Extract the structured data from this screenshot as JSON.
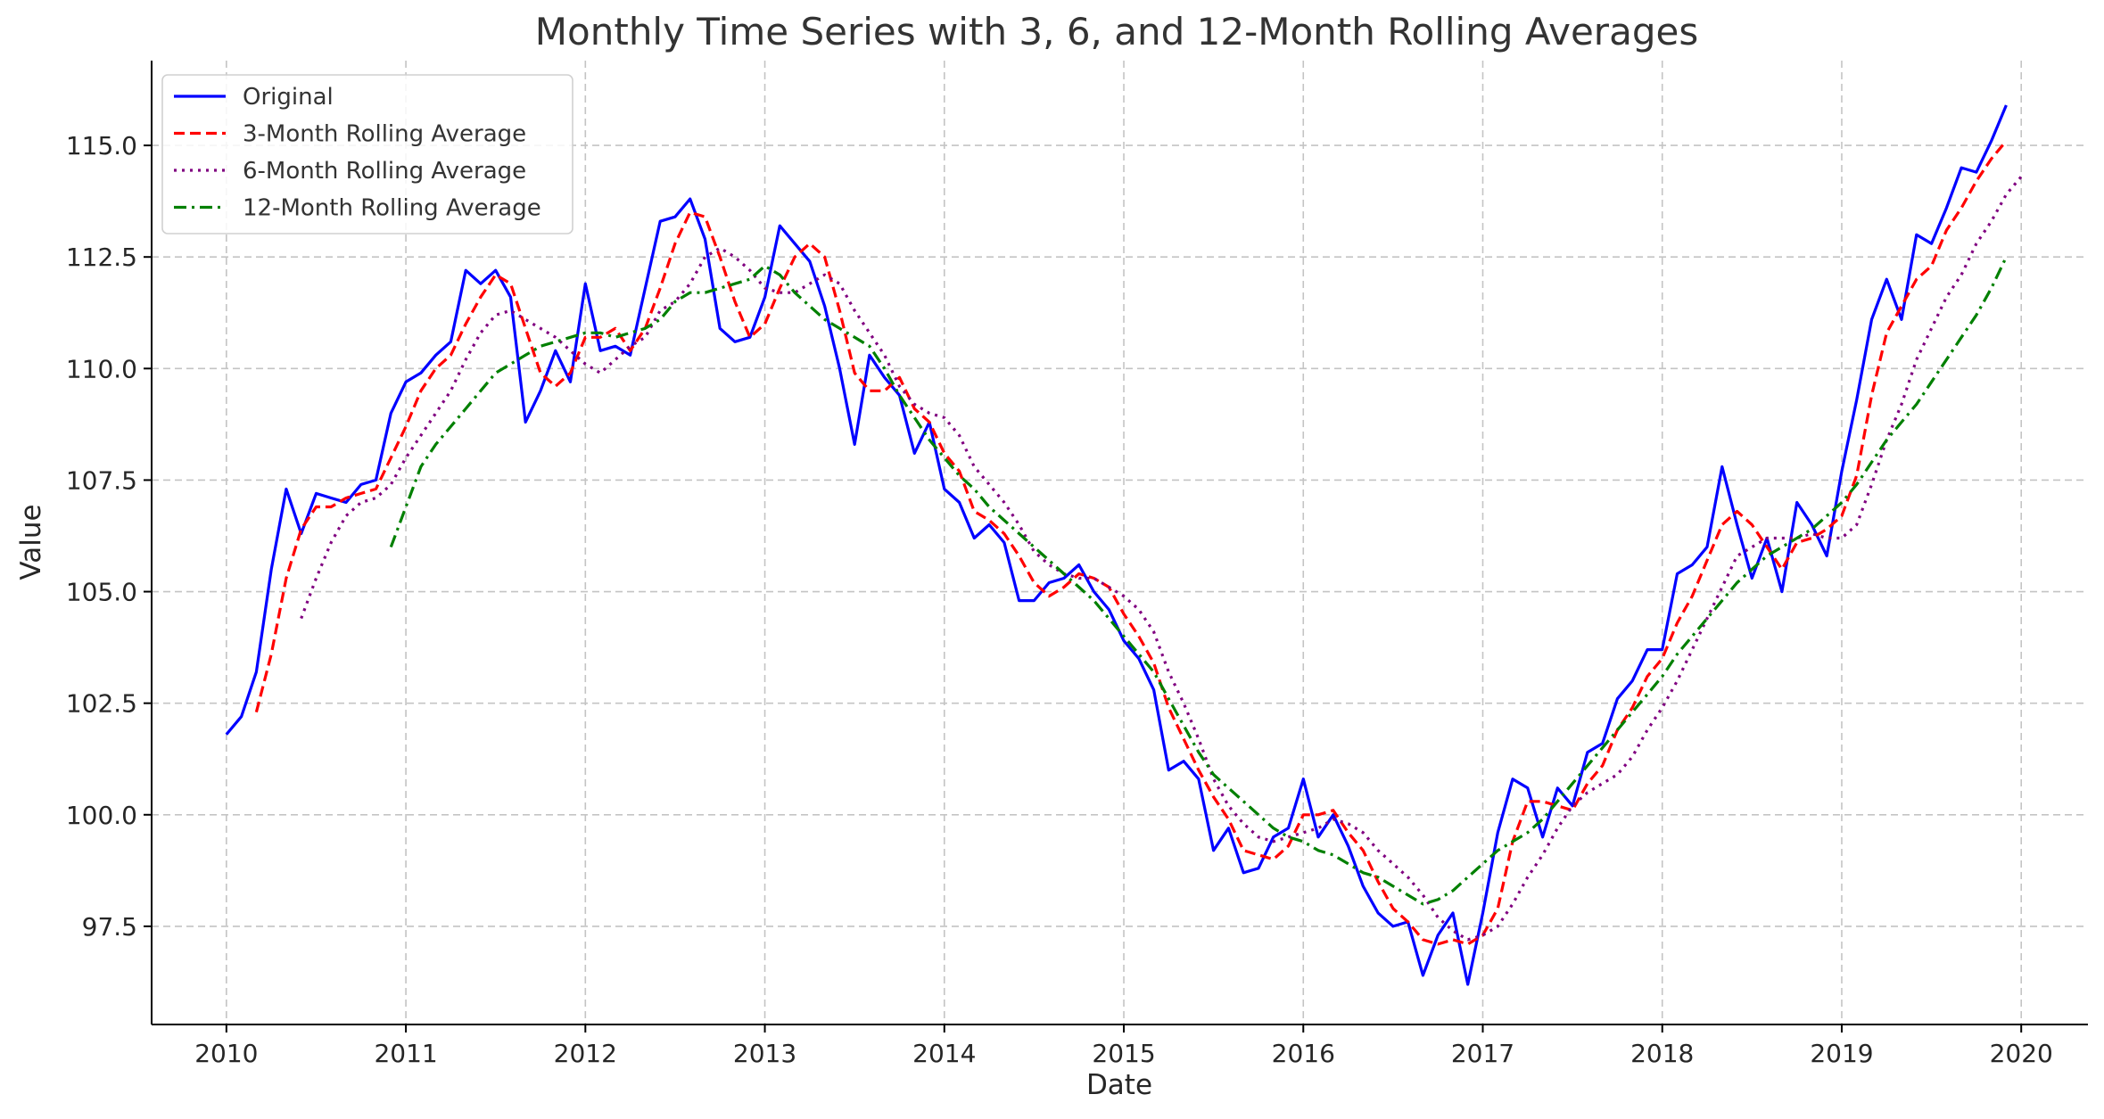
{
  "chart_data": {
    "type": "line",
    "title": "Monthly Time Series with 3, 6, and 12-Month Rolling Averages",
    "xlabel": "Date",
    "ylabel": "Value",
    "xlim": [
      "2009-08-01",
      "2020-05-15"
    ],
    "ylim": [
      95.3,
      116.9
    ],
    "x_ticks": [
      "2010",
      "2011",
      "2012",
      "2013",
      "2014",
      "2015",
      "2016",
      "2017",
      "2018",
      "2019",
      "2020"
    ],
    "y_ticks": [
      97.5,
      100.0,
      102.5,
      105.0,
      107.5,
      110.0,
      112.5,
      115.0
    ],
    "y_tick_labels": [
      "97.5",
      "100.0",
      "102.5",
      "105.0",
      "107.5",
      "110.0",
      "112.5",
      "115.0"
    ],
    "grid": true,
    "legend_position": "top-left",
    "start_month": "2010-01",
    "series": [
      {
        "name": "Original",
        "color": "#0000ff",
        "dash": "solid",
        "values": [
          101.8,
          102.2,
          103.2,
          105.5,
          107.3,
          106.3,
          107.2,
          107.1,
          107.0,
          107.4,
          107.5,
          109.0,
          109.7,
          109.9,
          110.3,
          110.6,
          112.2,
          111.9,
          112.2,
          111.6,
          108.8,
          109.5,
          110.4,
          109.7,
          111.9,
          110.4,
          110.5,
          110.3,
          111.8,
          113.3,
          113.4,
          113.8,
          112.9,
          110.9,
          110.6,
          110.7,
          111.6,
          113.2,
          112.8,
          112.4,
          111.4,
          110.0,
          108.3,
          110.3,
          109.8,
          109.4,
          108.1,
          108.8,
          107.3,
          107.0,
          106.2,
          106.5,
          106.1,
          104.8,
          104.8,
          105.2,
          105.3,
          105.6,
          105.0,
          104.6,
          103.9,
          103.5,
          102.8,
          101.0,
          101.2,
          100.8,
          99.2,
          99.7,
          98.7,
          98.8,
          99.5,
          99.7,
          100.8,
          99.5,
          100.0,
          99.3,
          98.4,
          97.8,
          97.5,
          97.6,
          96.4,
          97.3,
          97.8,
          96.2,
          97.8,
          99.6,
          100.8,
          100.6,
          99.5,
          100.6,
          100.2,
          101.4,
          101.6,
          102.6,
          103.0,
          103.7,
          103.7,
          105.4,
          105.6,
          106.0,
          107.8,
          106.5,
          105.3,
          106.2,
          105.0,
          107.0,
          106.5,
          105.8,
          107.7,
          109.3,
          111.1,
          112.0,
          111.1,
          113.0,
          112.8,
          113.6,
          114.5,
          114.4,
          115.1,
          115.9
        ]
      },
      {
        "name": "3-Month Rolling Average",
        "color": "#ff0000",
        "dash": "12 6",
        "values": [
          null,
          null,
          102.3,
          103.6,
          105.3,
          106.4,
          106.9,
          106.9,
          107.1,
          107.2,
          107.3,
          108.0,
          108.7,
          109.5,
          110.0,
          110.3,
          111.0,
          111.6,
          112.1,
          111.9,
          110.9,
          109.9,
          109.6,
          109.9,
          110.7,
          110.7,
          110.9,
          110.4,
          110.9,
          111.8,
          112.8,
          113.5,
          113.4,
          112.5,
          111.5,
          110.7,
          111.0,
          111.8,
          112.5,
          112.8,
          112.5,
          111.3,
          109.9,
          109.5,
          109.5,
          109.8,
          109.1,
          108.8,
          108.1,
          107.7,
          106.8,
          106.6,
          106.3,
          105.8,
          105.2,
          104.9,
          105.1,
          105.4,
          105.3,
          105.1,
          104.5,
          104.0,
          103.4,
          102.4,
          101.7,
          101.0,
          100.4,
          99.9,
          99.2,
          99.1,
          99.0,
          99.3,
          100.0,
          100.0,
          100.1,
          99.6,
          99.2,
          98.5,
          97.9,
          97.6,
          97.2,
          97.1,
          97.2,
          97.1,
          97.3,
          97.9,
          99.4,
          100.3,
          100.3,
          100.2,
          100.1,
          100.7,
          101.1,
          101.9,
          102.4,
          103.1,
          103.5,
          104.3,
          104.9,
          105.7,
          106.5,
          106.8,
          106.5,
          106.0,
          105.5,
          106.1,
          106.2,
          106.4,
          106.7,
          107.6,
          109.4,
          110.8,
          111.4,
          112.0,
          112.3,
          113.1,
          113.6,
          114.2,
          114.7,
          115.1
        ]
      },
      {
        "name": "6-Month Rolling Average",
        "color": "#800080",
        "dash": "3 6",
        "values": [
          null,
          null,
          null,
          null,
          null,
          104.4,
          105.3,
          106.1,
          106.7,
          107.0,
          107.1,
          107.4,
          108.0,
          108.5,
          109.0,
          109.5,
          110.2,
          110.8,
          111.2,
          111.3,
          111.1,
          110.9,
          110.7,
          110.4,
          110.1,
          109.9,
          110.2,
          110.5,
          110.7,
          111.3,
          111.5,
          111.9,
          112.5,
          112.7,
          112.5,
          112.2,
          111.8,
          111.7,
          111.7,
          111.9,
          112.1,
          111.9,
          111.3,
          110.8,
          110.3,
          109.6,
          109.2,
          109.0,
          108.9,
          108.5,
          107.8,
          107.4,
          107.0,
          106.5,
          105.9,
          105.6,
          105.4,
          105.3,
          105.3,
          105.1,
          104.9,
          104.6,
          104.1,
          103.2,
          102.5,
          101.7,
          100.8,
          100.2,
          99.8,
          99.5,
          99.4,
          99.5,
          99.6,
          99.7,
          99.9,
          99.8,
          99.6,
          99.2,
          98.9,
          98.6,
          98.2,
          97.7,
          97.4,
          97.2,
          97.3,
          97.5,
          98.0,
          98.6,
          99.1,
          99.7,
          100.2,
          100.5,
          100.7,
          100.9,
          101.3,
          101.9,
          102.4,
          103.0,
          103.7,
          104.4,
          105.1,
          105.8,
          106.0,
          106.2,
          106.2,
          106.2,
          106.3,
          106.2,
          106.2,
          106.5,
          107.4,
          108.4,
          109.2,
          110.2,
          110.9,
          111.6,
          112.1,
          112.8,
          113.3,
          113.9,
          114.3
        ]
      },
      {
        "name": "12-Month Rolling Average",
        "color": "#008000",
        "dash": "14 6 3 6",
        "values": [
          null,
          null,
          null,
          null,
          null,
          null,
          null,
          null,
          null,
          null,
          null,
          106.0,
          106.9,
          107.8,
          108.3,
          108.7,
          109.1,
          109.5,
          109.9,
          110.1,
          110.3,
          110.5,
          110.6,
          110.7,
          110.8,
          110.8,
          110.7,
          110.8,
          110.9,
          111.1,
          111.5,
          111.7,
          111.7,
          111.8,
          111.9,
          112.0,
          112.3,
          112.1,
          111.7,
          111.4,
          111.1,
          110.9,
          110.7,
          110.5,
          110.0,
          109.4,
          108.9,
          108.4,
          108.0,
          107.6,
          107.3,
          106.9,
          106.6,
          106.3,
          106.0,
          105.7,
          105.4,
          105.1,
          104.8,
          104.4,
          104.0,
          103.6,
          103.2,
          102.6,
          102.0,
          101.4,
          100.9,
          100.6,
          100.3,
          100.0,
          99.7,
          99.5,
          99.4,
          99.2,
          99.1,
          98.9,
          98.7,
          98.6,
          98.4,
          98.2,
          98.0,
          98.1,
          98.3,
          98.6,
          98.9,
          99.2,
          99.4,
          99.6,
          99.9,
          100.3,
          100.7,
          101.1,
          101.5,
          101.9,
          102.3,
          102.7,
          103.1,
          103.6,
          104.0,
          104.4,
          104.8,
          105.2,
          105.5,
          105.8,
          106.0,
          106.2,
          106.4,
          106.7,
          107.0,
          107.4,
          107.9,
          108.4,
          108.8,
          109.2,
          109.7,
          110.2,
          110.7,
          111.2,
          111.8,
          112.5
        ]
      }
    ]
  }
}
